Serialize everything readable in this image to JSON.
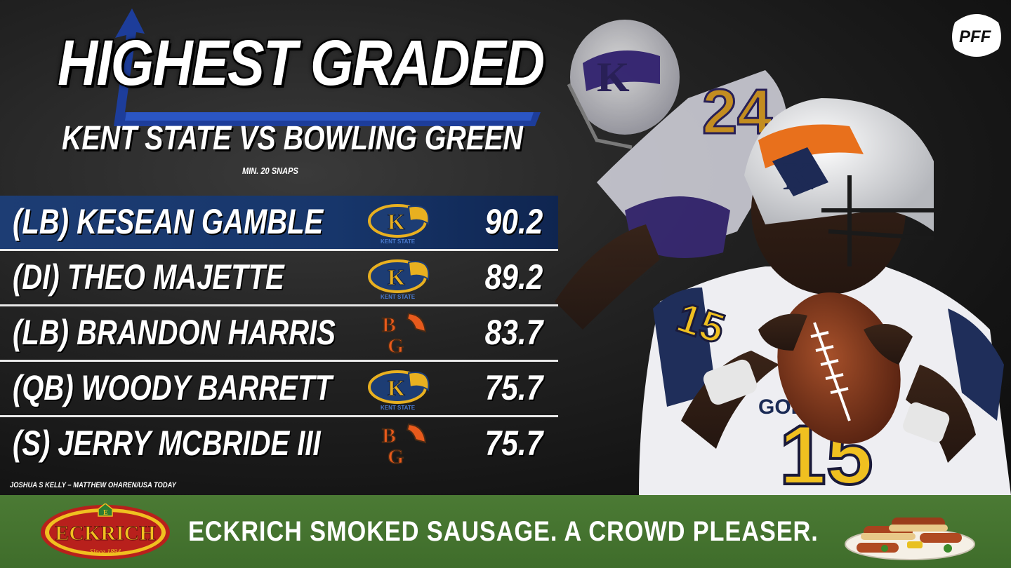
{
  "header": {
    "title": "HIGHEST GRADED",
    "subtitle": "KENT STATE VS BOWLING GREEN",
    "note": "MIN. 20 SNAPS"
  },
  "brand": {
    "logo_text": "PFF"
  },
  "players": [
    {
      "position_name": "(LB) KESEAN GAMBLE",
      "team": "Kent State",
      "team_logo": "kent-state-logo",
      "grade": "90.2",
      "highlighted": true
    },
    {
      "position_name": "(DI) THEO MAJETTE",
      "team": "Kent State",
      "team_logo": "kent-state-logo",
      "grade": "89.2",
      "highlighted": false
    },
    {
      "position_name": "(LB) BRANDON HARRIS",
      "team": "Bowling Green",
      "team_logo": "bowling-green-logo",
      "grade": "83.7",
      "highlighted": false
    },
    {
      "position_name": "(QB) WOODY BARRETT",
      "team": "Kent State",
      "team_logo": "kent-state-logo",
      "grade": "75.7",
      "highlighted": false
    },
    {
      "position_name": "(S) JERRY MCBRIDE III",
      "team": "Bowling Green",
      "team_logo": "bowling-green-logo",
      "grade": "75.7",
      "highlighted": false
    }
  ],
  "credit": "JOSHUA S KELLY – MATTHEW OHAREN/USA TODAY",
  "ad": {
    "brand": "ECKRICH",
    "since": "Since 1894",
    "text": "ECKRICH SMOKED SAUSAGE. A CROWD PLEASER."
  },
  "colors": {
    "kent_blue": "#1d3d74",
    "kent_gold": "#e8b020",
    "bg_orange": "#e85a1c",
    "bg_brown": "#4a2a14",
    "ad_green": "#4b7a34",
    "eckrich_red": "#b8201c",
    "eckrich_gold": "#f0c020"
  }
}
